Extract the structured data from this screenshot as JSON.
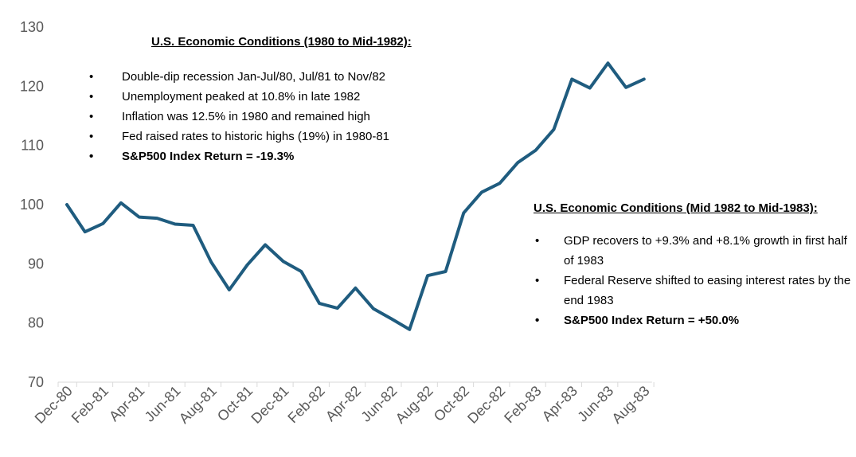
{
  "chart_data": {
    "type": "line",
    "title": "",
    "xlabel": "",
    "ylabel": "",
    "ylim": [
      70,
      130
    ],
    "yticks": [
      70,
      80,
      90,
      100,
      110,
      120,
      130
    ],
    "tick_labels": [
      "Dec-80",
      "Feb-81",
      "Apr-81",
      "Jun-81",
      "Aug-81",
      "Oct-81",
      "Dec-81",
      "Feb-82",
      "Apr-82",
      "Jun-82",
      "Aug-82",
      "Oct-82",
      "Dec-82",
      "Feb-83",
      "Apr-83",
      "Jun-83",
      "Aug-83"
    ],
    "line_color": "#1f5c7f",
    "series": [
      {
        "name": "S&P500 Index",
        "values": [
          100,
          95.4,
          96.8,
          100.3,
          97.9,
          97.7,
          96.7,
          96.5,
          90.3,
          85.6,
          89.8,
          93.2,
          90.4,
          88.7,
          83.3,
          82.5,
          85.9,
          82.4,
          80.7,
          78.9,
          88,
          88.7,
          98.6,
          102.1,
          103.6,
          107.1,
          109.2,
          112.7,
          121.2,
          119.7,
          123.9,
          119.8,
          121.2
        ]
      }
    ]
  },
  "annotations": {
    "box1": {
      "title": "U.S. Economic Conditions (1980 to Mid-1982):",
      "bullets": [
        "Double-dip recession Jan-Jul/80, Jul/81 to Nov/82",
        "Unemployment peaked at 10.8% in late 1982",
        "Inflation was 12.5% in 1980 and remained high",
        "Fed raised rates to historic highs (19%) in 1980-81"
      ],
      "return_text": "S&P500 Index Return = -19.3%"
    },
    "box2": {
      "title": "U.S. Economic Conditions (Mid 1982 to Mid-1983):",
      "bullets": [
        "GDP recovers to +9.3% and +8.1% growth in first half of 1983",
        "Federal Reserve shifted to easing interest rates by the end 1983"
      ],
      "return_text": "S&P500 Index Return = +50.0%"
    }
  }
}
